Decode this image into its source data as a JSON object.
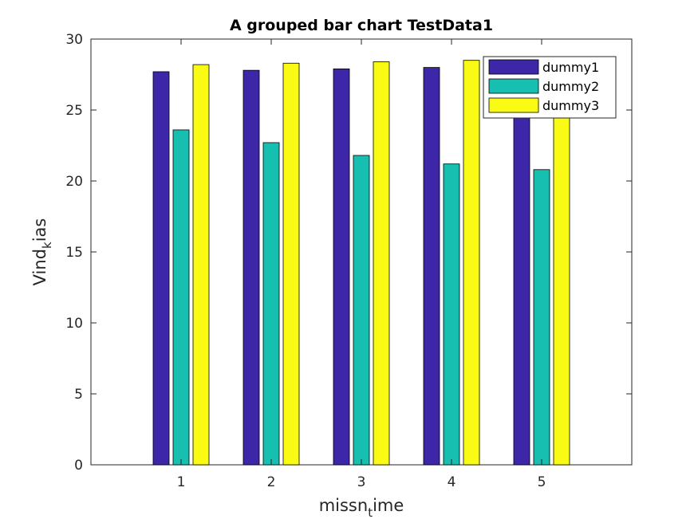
{
  "chart_data": {
    "type": "bar",
    "title": "A grouped bar chart TestData1",
    "xlabel": {
      "main": "missn",
      "sub": "t",
      "rest": "ime"
    },
    "ylabel": {
      "main": "Vind",
      "sub": "k",
      "rest": "ias"
    },
    "categories": [
      "1",
      "2",
      "3",
      "4",
      "5"
    ],
    "xlim": [
      0,
      6
    ],
    "ylim": [
      0,
      30
    ],
    "yticks": [
      "0",
      "5",
      "10",
      "15",
      "20",
      "25",
      "30"
    ],
    "grid": false,
    "legend_position": "top-right",
    "series": [
      {
        "name": "dummy1",
        "color": "#3e26a8",
        "values": [
          27.7,
          27.8,
          27.9,
          28.0,
          28.1
        ]
      },
      {
        "name": "dummy2",
        "color": "#17bfb0",
        "values": [
          23.6,
          22.7,
          21.8,
          21.2,
          20.8
        ]
      },
      {
        "name": "dummy3",
        "color": "#f9fb15",
        "values": [
          28.2,
          28.3,
          28.4,
          28.5,
          28.6
        ]
      }
    ]
  }
}
